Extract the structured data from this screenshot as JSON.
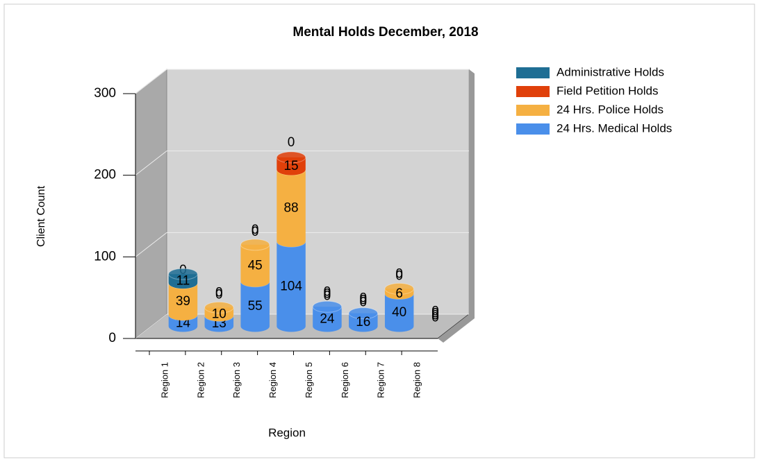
{
  "chart_data": {
    "type": "bar3d_stacked",
    "title": "Mental Holds December, 2018",
    "x_label": "Region",
    "y_label": "Client Count",
    "categories": [
      "Region 1",
      "Region 2",
      "Region 3",
      "Region 4",
      "Region 5",
      "Region 6",
      "Region 7",
      "Region 8"
    ],
    "series": [
      {
        "name": "24 Hrs. Medical Holds",
        "color": "#4a8fea",
        "values": [
          14,
          13,
          55,
          104,
          24,
          16,
          40,
          0
        ]
      },
      {
        "name": "24 Hrs. Police Holds",
        "color": "#f5b042",
        "values": [
          39,
          10,
          45,
          88,
          0,
          0,
          6,
          0
        ]
      },
      {
        "name": "Field Petition Holds",
        "color": "#e0400a",
        "values": [
          0,
          0,
          0,
          15,
          0,
          0,
          0,
          0
        ]
      },
      {
        "name": "Administrative Holds",
        "color": "#1f6e94",
        "values": [
          11,
          0,
          0,
          0,
          0,
          0,
          0,
          0
        ]
      }
    ],
    "ylim": [
      0,
      300
    ],
    "yticks": [
      0,
      100,
      200,
      300
    ],
    "grid": true,
    "legend": "top-right"
  }
}
